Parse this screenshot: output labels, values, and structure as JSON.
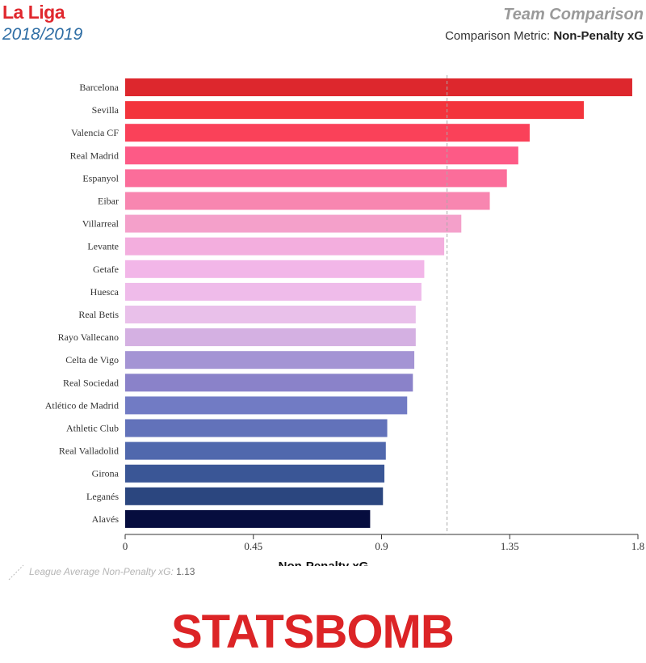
{
  "header": {
    "league": "La Liga",
    "season": "2018/2019",
    "title": "Team Comparison",
    "metric_prefix": "Comparison Metric:",
    "metric_name": "Non-Penalty xG"
  },
  "footer": {
    "average_label": "League Average Non-Penalty xG:",
    "average_value": "1.13",
    "brand": "STATSBOMB"
  },
  "colors": {
    "league": "#e0282e",
    "season": "#2e6da4",
    "average_line": "#aaaaaa",
    "brand": "#dc2426"
  },
  "chart_data": {
    "type": "bar",
    "orientation": "horizontal",
    "xlabel": "Non-Penalty xG",
    "xlim": [
      0,
      1.8
    ],
    "xticks": [
      "0",
      "0.45",
      "0.9",
      "1.35",
      "1.8"
    ],
    "xtick_values": [
      0,
      0.45,
      0.9,
      1.35,
      1.8
    ],
    "average": 1.13,
    "categories": [
      "Barcelona",
      "Sevilla",
      "Valencia CF",
      "Real Madrid",
      "Espanyol",
      "Eibar",
      "Villarreal",
      "Levante",
      "Getafe",
      "Huesca",
      "Real Betis",
      "Rayo Vallecano",
      "Celta de Vigo",
      "Real Sociedad",
      "Atlético de Madrid",
      "Athletic Club",
      "Real Valladolid",
      "Girona",
      "Leganés",
      "Alavés"
    ],
    "values": [
      1.78,
      1.61,
      1.42,
      1.38,
      1.34,
      1.28,
      1.18,
      1.12,
      1.05,
      1.04,
      1.02,
      1.02,
      1.015,
      1.01,
      0.99,
      0.92,
      0.915,
      0.91,
      0.905,
      0.86
    ],
    "bar_colors": [
      "#dd272d",
      "#f3343c",
      "#fa4159",
      "#fd5a86",
      "#fb6d9a",
      "#f886b0",
      "#f4a0ca",
      "#f3aede",
      "#f2b6e8",
      "#efbbea",
      "#e9c0ea",
      "#d4b0e2",
      "#a494d4",
      "#8a82c9",
      "#717bc4",
      "#6272ba",
      "#5068ad",
      "#3a5696",
      "#2b467f",
      "#060d3e"
    ]
  }
}
